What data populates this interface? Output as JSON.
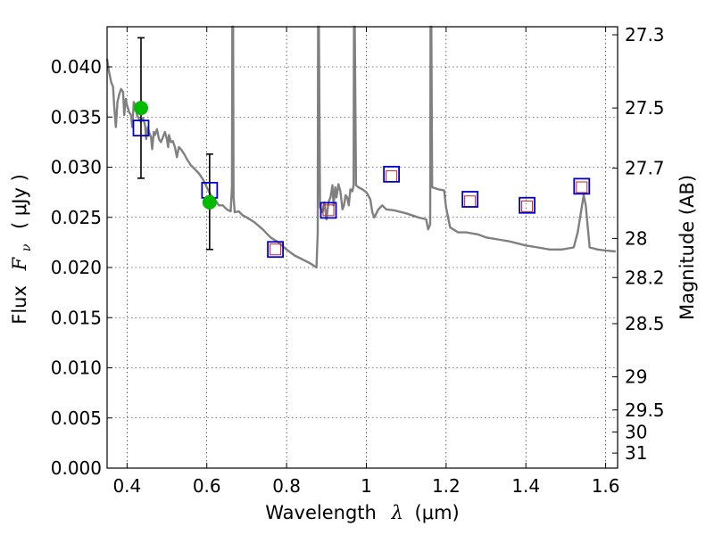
{
  "chart_data": {
    "type": "scatter",
    "xlabel": "Wavelength  λ (μm)",
    "ylabel": "Flux  F_ν  ( μJy )",
    "ylabel_parts": {
      "prefix": "Flux",
      "symbol": "F",
      "subscript": "ν",
      "unit": "( μJy )"
    },
    "xlabel_parts": {
      "prefix": "Wavelength",
      "symbol": "λ",
      "unit": "(μm)"
    },
    "y2label": "Magnitude (AB)",
    "xlim": [
      0.35,
      1.63
    ],
    "ylim": [
      0.0,
      0.044
    ],
    "grid": true,
    "colors": {
      "spectrum": "#808080",
      "observed": "#00bb00",
      "model_box": "#0000cc",
      "small_box": "#cc2222",
      "error_bar": "#000000"
    },
    "x_ticks": [
      {
        "value": 0.4,
        "label": "0.4"
      },
      {
        "value": 0.6,
        "label": "0.6"
      },
      {
        "value": 0.8,
        "label": "0.8"
      },
      {
        "value": 1.0,
        "label": "1"
      },
      {
        "value": 1.2,
        "label": "1.2"
      },
      {
        "value": 1.4,
        "label": "1.4"
      },
      {
        "value": 1.6,
        "label": "1.6"
      }
    ],
    "y_ticks": [
      {
        "value": 0.0,
        "label": "0.000"
      },
      {
        "value": 0.005,
        "label": "0.005"
      },
      {
        "value": 0.01,
        "label": "0.010"
      },
      {
        "value": 0.015,
        "label": "0.015"
      },
      {
        "value": 0.02,
        "label": "0.020"
      },
      {
        "value": 0.025,
        "label": "0.025"
      },
      {
        "value": 0.03,
        "label": "0.030"
      },
      {
        "value": 0.035,
        "label": "0.035"
      },
      {
        "value": 0.04,
        "label": "0.040"
      }
    ],
    "y2_ticks": [
      {
        "flux": 0.0432,
        "label": "27.3"
      },
      {
        "flux": 0.0359,
        "label": "27.5"
      },
      {
        "flux": 0.0299,
        "label": "27.7"
      },
      {
        "flux": 0.0229,
        "label": "28"
      },
      {
        "flux": 0.019,
        "label": "28.2"
      },
      {
        "flux": 0.0144,
        "label": "28.5"
      },
      {
        "flux": 0.0091,
        "label": "29"
      },
      {
        "flux": 0.0058,
        "label": "29.5"
      },
      {
        "flux": 0.0036,
        "label": "30"
      },
      {
        "flux": 0.0015,
        "label": "31"
      }
    ],
    "series": [
      {
        "kind": "line",
        "points": [
          [
            0.35,
            0.0408
          ],
          [
            0.355,
            0.0395
          ],
          [
            0.36,
            0.0385
          ],
          [
            0.365,
            0.038
          ],
          [
            0.368,
            0.036
          ],
          [
            0.372,
            0.034
          ],
          [
            0.376,
            0.0365
          ],
          [
            0.38,
            0.0372
          ],
          [
            0.385,
            0.0378
          ],
          [
            0.39,
            0.0375
          ],
          [
            0.393,
            0.0352
          ],
          [
            0.397,
            0.0368
          ],
          [
            0.4,
            0.0362
          ],
          [
            0.405,
            0.0355
          ],
          [
            0.41,
            0.0352
          ],
          [
            0.413,
            0.034
          ],
          [
            0.417,
            0.0365
          ],
          [
            0.42,
            0.0362
          ],
          [
            0.425,
            0.0352
          ],
          [
            0.43,
            0.0348
          ],
          [
            0.435,
            0.0345
          ],
          [
            0.44,
            0.0349
          ],
          [
            0.445,
            0.0342
          ],
          [
            0.448,
            0.0328
          ],
          [
            0.452,
            0.034
          ],
          [
            0.455,
            0.0335
          ],
          [
            0.46,
            0.033
          ],
          [
            0.463,
            0.0318
          ],
          [
            0.467,
            0.0335
          ],
          [
            0.47,
            0.0332
          ],
          [
            0.475,
            0.0338
          ],
          [
            0.48,
            0.0328
          ],
          [
            0.485,
            0.0325
          ],
          [
            0.49,
            0.033
          ],
          [
            0.495,
            0.0335
          ],
          [
            0.5,
            0.0328
          ],
          [
            0.503,
            0.032
          ],
          [
            0.505,
            0.0332
          ],
          [
            0.51,
            0.0325
          ],
          [
            0.515,
            0.0326
          ],
          [
            0.52,
            0.032
          ],
          [
            0.525,
            0.031
          ],
          [
            0.53,
            0.032
          ],
          [
            0.535,
            0.0318
          ],
          [
            0.54,
            0.0315
          ],
          [
            0.545,
            0.0312
          ],
          [
            0.55,
            0.0308
          ],
          [
            0.555,
            0.0305
          ],
          [
            0.56,
            0.0302
          ],
          [
            0.565,
            0.03
          ],
          [
            0.57,
            0.0298
          ],
          [
            0.575,
            0.0296
          ],
          [
            0.58,
            0.0294
          ],
          [
            0.59,
            0.0288
          ],
          [
            0.6,
            0.028
          ],
          [
            0.61,
            0.0272
          ],
          [
            0.62,
            0.0268
          ],
          [
            0.625,
            0.0265
          ],
          [
            0.63,
            0.0262
          ],
          [
            0.64,
            0.0262
          ],
          [
            0.65,
            0.0258
          ],
          [
            0.66,
            0.0256
          ],
          [
            0.663,
            0.028
          ],
          [
            0.664,
            0.044
          ],
          [
            0.666,
            0.044
          ],
          [
            0.667,
            0.027
          ],
          [
            0.67,
            0.0255
          ],
          [
            0.68,
            0.0256
          ],
          [
            0.69,
            0.0252
          ],
          [
            0.7,
            0.025
          ],
          [
            0.72,
            0.0245
          ],
          [
            0.74,
            0.0238
          ],
          [
            0.76,
            0.023
          ],
          [
            0.78,
            0.0225
          ],
          [
            0.8,
            0.0218
          ],
          [
            0.82,
            0.0212
          ],
          [
            0.84,
            0.0208
          ],
          [
            0.86,
            0.0204
          ],
          [
            0.875,
            0.02
          ],
          [
            0.878,
            0.0235
          ],
          [
            0.879,
            0.044
          ],
          [
            0.881,
            0.044
          ],
          [
            0.884,
            0.026
          ],
          [
            0.89,
            0.0255
          ],
          [
            0.895,
            0.0265
          ],
          [
            0.9,
            0.0248
          ],
          [
            0.905,
            0.0265
          ],
          [
            0.91,
            0.027
          ],
          [
            0.915,
            0.0282
          ],
          [
            0.918,
            0.0262
          ],
          [
            0.922,
            0.028
          ],
          [
            0.925,
            0.027
          ],
          [
            0.93,
            0.0283
          ],
          [
            0.935,
            0.0276
          ],
          [
            0.94,
            0.0258
          ],
          [
            0.944,
            0.0262
          ],
          [
            0.948,
            0.0272
          ],
          [
            0.952,
            0.027
          ],
          [
            0.956,
            0.0262
          ],
          [
            0.96,
            0.0278
          ],
          [
            0.965,
            0.0276
          ],
          [
            0.968,
            0.0282
          ],
          [
            0.969,
            0.044
          ],
          [
            0.971,
            0.044
          ],
          [
            0.974,
            0.0282
          ],
          [
            0.98,
            0.028
          ],
          [
            0.99,
            0.0278
          ],
          [
            1.0,
            0.0275
          ],
          [
            1.01,
            0.0268
          ],
          [
            1.015,
            0.0255
          ],
          [
            1.02,
            0.025
          ],
          [
            1.03,
            0.0258
          ],
          [
            1.04,
            0.0262
          ],
          [
            1.05,
            0.0258
          ],
          [
            1.07,
            0.0257
          ],
          [
            1.1,
            0.0254
          ],
          [
            1.13,
            0.025
          ],
          [
            1.15,
            0.0248
          ],
          [
            1.155,
            0.0238
          ],
          [
            1.16,
            0.0243
          ],
          [
            1.161,
            0.044
          ],
          [
            1.163,
            0.044
          ],
          [
            1.165,
            0.028
          ],
          [
            1.18,
            0.0278
          ],
          [
            1.195,
            0.0277
          ],
          [
            1.2,
            0.026
          ],
          [
            1.21,
            0.024
          ],
          [
            1.23,
            0.0235
          ],
          [
            1.25,
            0.0235
          ],
          [
            1.28,
            0.0233
          ],
          [
            1.3,
            0.023
          ],
          [
            1.33,
            0.0228
          ],
          [
            1.36,
            0.0226
          ],
          [
            1.4,
            0.0222
          ],
          [
            1.43,
            0.022
          ],
          [
            1.46,
            0.0218
          ],
          [
            1.49,
            0.0218
          ],
          [
            1.52,
            0.022
          ],
          [
            1.53,
            0.0235
          ],
          [
            1.54,
            0.026
          ],
          [
            1.545,
            0.0272
          ],
          [
            1.55,
            0.0262
          ],
          [
            1.56,
            0.022
          ],
          [
            1.58,
            0.0218
          ],
          [
            1.6,
            0.0217
          ],
          [
            1.625,
            0.0216
          ]
        ]
      },
      {
        "kind": "points",
        "marker": "circle",
        "points": [
          [
            0.435,
            0.0359
          ],
          [
            0.607,
            0.0265
          ]
        ]
      },
      {
        "kind": "points",
        "marker": "square",
        "points": [
          [
            0.435,
            0.0339
          ],
          [
            0.607,
            0.0277
          ],
          [
            0.772,
            0.0218
          ],
          [
            0.905,
            0.0257
          ],
          [
            1.063,
            0.0293
          ],
          [
            1.26,
            0.0268
          ],
          [
            1.403,
            0.0262
          ],
          [
            1.54,
            0.0281
          ]
        ]
      },
      {
        "kind": "points",
        "marker": "square-small",
        "points": [
          [
            0.772,
            0.0218
          ],
          [
            0.905,
            0.0257
          ],
          [
            1.063,
            0.0291
          ],
          [
            1.26,
            0.0266
          ],
          [
            1.403,
            0.0261
          ],
          [
            1.54,
            0.028
          ]
        ]
      },
      {
        "kind": "errorbars",
        "points": [
          {
            "x": 0.435,
            "low": 0.0289,
            "high": 0.0429
          },
          {
            "x": 0.607,
            "low": 0.0218,
            "high": 0.0313
          }
        ]
      }
    ]
  }
}
